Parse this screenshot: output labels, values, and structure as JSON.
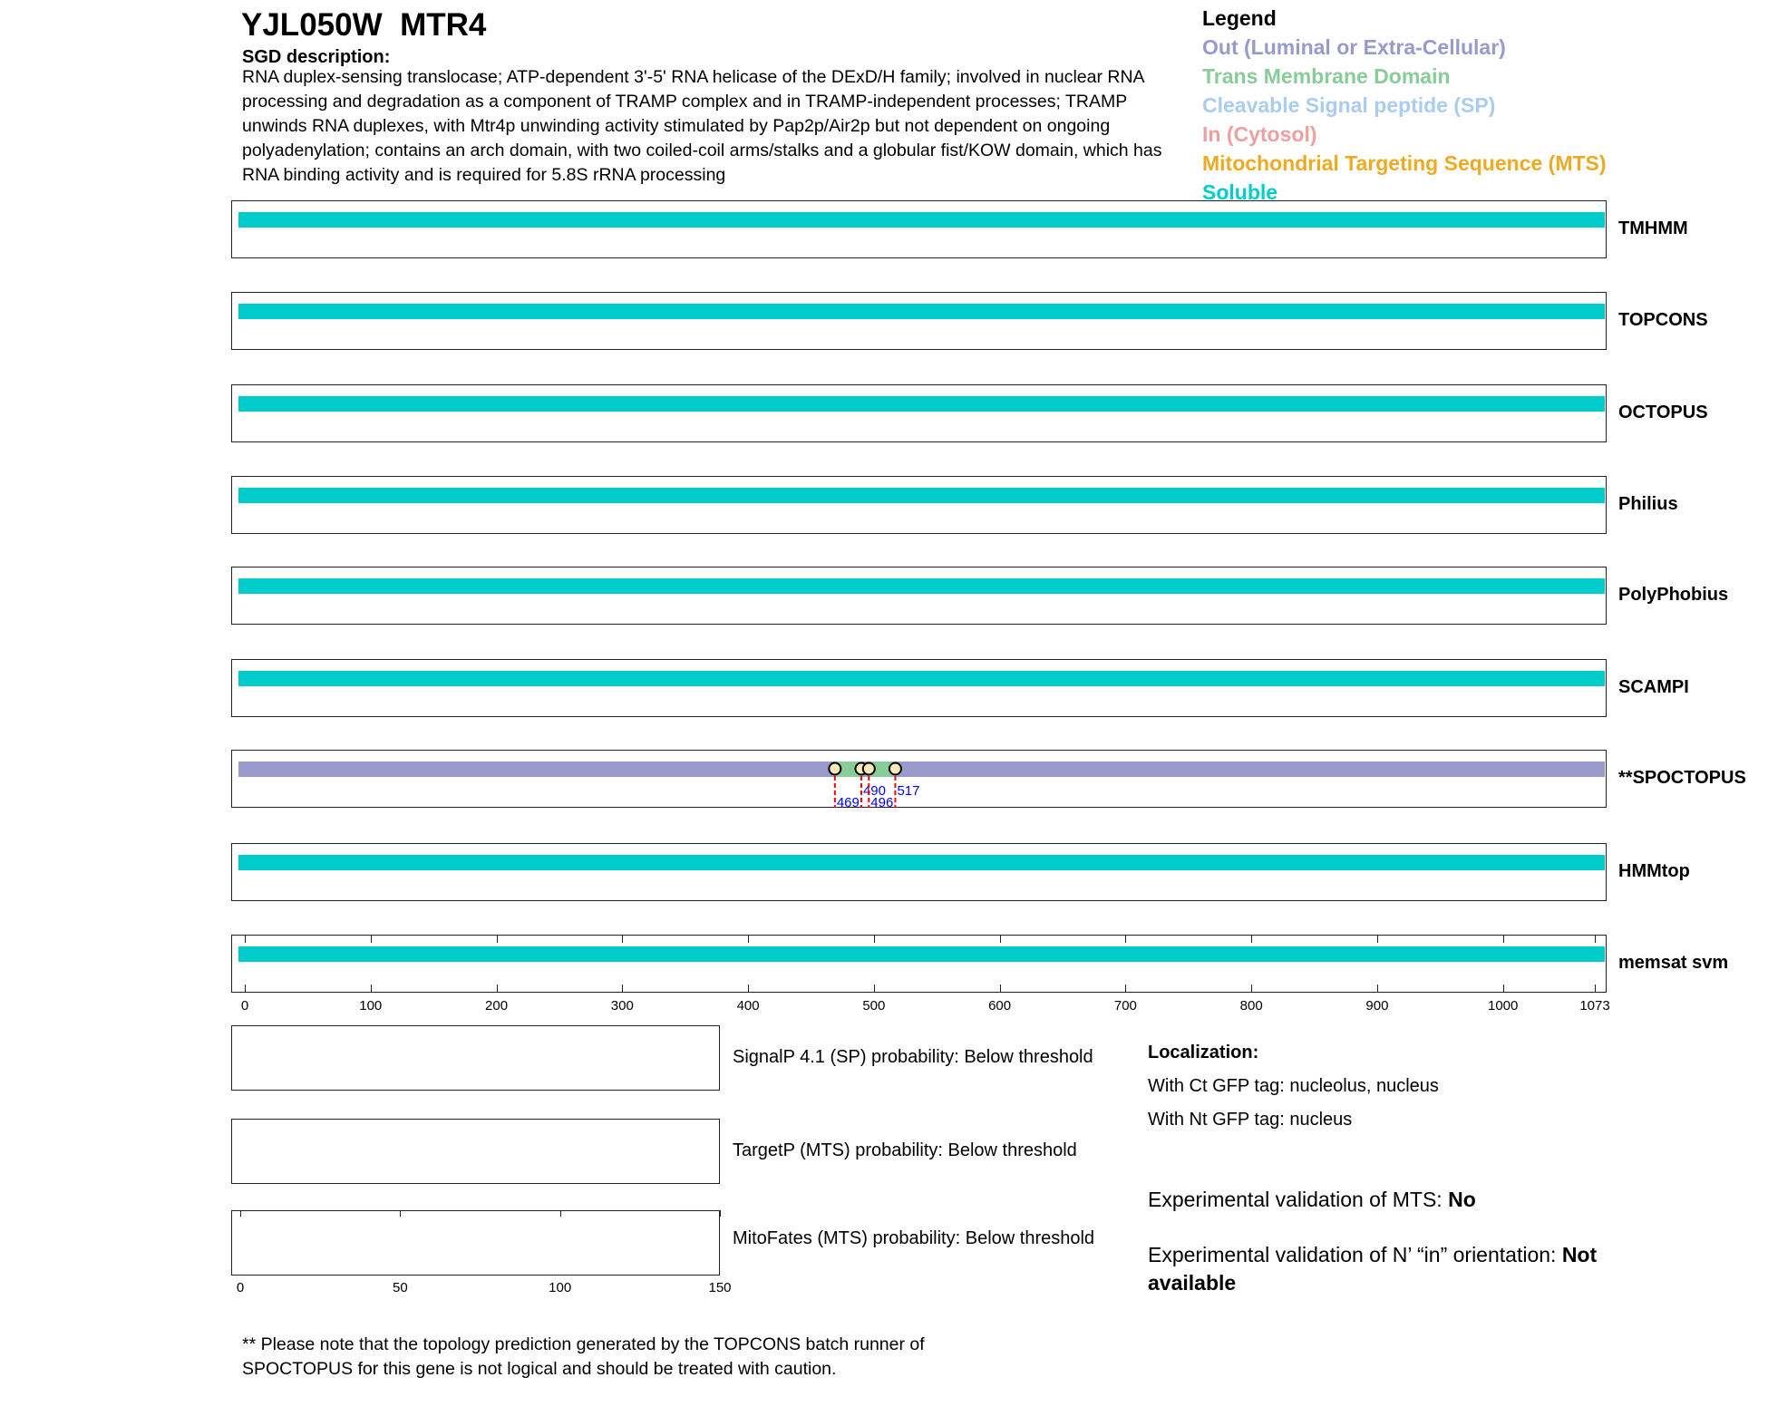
{
  "header": {
    "title": "YJL050W  MTR4",
    "desc_heading": "SGD description:",
    "description": "RNA duplex-sensing translocase; ATP-dependent 3'-5' RNA helicase of the DExD/H family; involved in nuclear RNA processing and degradation as a component of TRAMP complex and in TRAMP-independent processes; TRAMP unwinds RNA duplexes, with Mtr4p unwinding activity stimulated by Pap2p/Air2p but not dependent on ongoing polyadenylation; contains an arch domain, with two coiled-coil arms/stalks and a globular fist/KOW domain, which has RNA binding activity and is required for 5.8S rRNA processing"
  },
  "legend": {
    "title": "Legend",
    "items": [
      {
        "label": "Out (Luminal or Extra-Cellular)",
        "color": "#9999cc"
      },
      {
        "label": "Trans Membrane Domain",
        "color": "#88cc99"
      },
      {
        "label": "Cleavable Signal peptide (SP)",
        "color": "#aaccee"
      },
      {
        "label": "In (Cytosol)",
        "color": "#eea0a0"
      },
      {
        "label": "Mitochondrial Targeting Sequence (MTS)",
        "color": "#eeaa22"
      },
      {
        "label": "Soluble",
        "color": "#00cccc"
      }
    ]
  },
  "chart_data": {
    "type": "bar",
    "xlim": [
      0,
      1073
    ],
    "xticks": [
      "0",
      "100",
      "200",
      "300",
      "400",
      "500",
      "600",
      "700",
      "800",
      "900",
      "1000",
      "1073"
    ],
    "tracks": [
      {
        "name": "TMHMM",
        "segments": [
          {
            "start": 1,
            "end": 1073,
            "type": "Soluble"
          }
        ]
      },
      {
        "name": "TOPCONS",
        "segments": [
          {
            "start": 1,
            "end": 1073,
            "type": "Soluble"
          }
        ]
      },
      {
        "name": "OCTOPUS",
        "segments": [
          {
            "start": 1,
            "end": 1073,
            "type": "Soluble"
          }
        ]
      },
      {
        "name": "Philius",
        "segments": [
          {
            "start": 1,
            "end": 1073,
            "type": "Soluble"
          }
        ]
      },
      {
        "name": "PolyPhobius",
        "segments": [
          {
            "start": 1,
            "end": 1073,
            "type": "Soluble"
          }
        ]
      },
      {
        "name": "SCAMPI",
        "segments": [
          {
            "start": 1,
            "end": 1073,
            "type": "Soluble"
          }
        ]
      },
      {
        "name": "**SPOCTOPUS",
        "segments": [
          {
            "start": 1,
            "end": 469,
            "type": "Out"
          },
          {
            "start": 469,
            "end": 490,
            "type": "TM"
          },
          {
            "start": 490,
            "end": 496,
            "type": "Out"
          },
          {
            "start": 496,
            "end": 517,
            "type": "TM"
          },
          {
            "start": 517,
            "end": 1073,
            "type": "Out"
          }
        ],
        "markers": [
          {
            "pos": 469,
            "label": "469",
            "row": "low"
          },
          {
            "pos": 490,
            "label": "490",
            "row": "high"
          },
          {
            "pos": 496,
            "label": "496",
            "row": "low"
          },
          {
            "pos": 517,
            "label": "517",
            "row": "high"
          }
        ]
      },
      {
        "name": "HMMtop",
        "segments": [
          {
            "start": 1,
            "end": 1073,
            "type": "Soluble"
          }
        ]
      },
      {
        "name": "memsat svm",
        "segments": [
          {
            "start": 1,
            "end": 1073,
            "type": "Soluble"
          }
        ]
      }
    ],
    "prob_xlim": [
      0,
      150
    ],
    "prob_xticks": [
      "0",
      "50",
      "100",
      "150"
    ]
  },
  "probs": [
    {
      "name": "SignalP",
      "text": "SignalP 4.1 (SP) probability: Below threshold"
    },
    {
      "name": "TargetP",
      "text": "TargetP (MTS) probability: Below threshold"
    },
    {
      "name": "MitoFates",
      "text": "MitoFates (MTS) probability: Below threshold"
    }
  ],
  "localization": {
    "heading": "Localization:",
    "ct": "With Ct GFP tag: nucleolus, nucleus",
    "nt": "With Nt GFP tag: nucleus",
    "mts_label": "Experimental validation of MTS: ",
    "mts_value": "No",
    "orient_label": "Experimental validation of N’ “in” orientation: ",
    "orient_value": "Not available"
  },
  "footnote": "** Please note that the topology prediction generated by the TOPCONS batch runner of SPOCTOPUS for this gene is not logical and should be treated with caution."
}
